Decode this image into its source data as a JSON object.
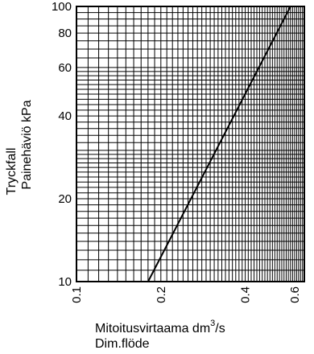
{
  "chart_data": {
    "type": "line",
    "xscale": "log",
    "yscale": "log",
    "xlim": [
      0.1,
      0.65
    ],
    "ylim": [
      10,
      100
    ],
    "grid": true,
    "xticks": [
      {
        "value": 0.1,
        "label": "0.1"
      },
      {
        "value": 0.2,
        "label": "0.2"
      },
      {
        "value": 0.4,
        "label": "0.4"
      },
      {
        "value": 0.6,
        "label": "0.6"
      }
    ],
    "yticks": [
      {
        "value": 10,
        "label": "10"
      },
      {
        "value": 20,
        "label": "20"
      },
      {
        "value": 40,
        "label": "40"
      },
      {
        "value": 60,
        "label": "60"
      },
      {
        "value": 80,
        "label": "80"
      },
      {
        "value": 100,
        "label": "100"
      }
    ],
    "ylabel_line1": "Tryckfall",
    "ylabel_line2": "Painehäviö  kPa",
    "xlabel_line1_main": "Mitoitusvirtaama  dm",
    "xlabel_line1_sup": "3",
    "xlabel_line1_tail": "/s",
    "xlabel_line2": "Dim.flöde",
    "series": [
      {
        "x": [
          0.18,
          0.58
        ],
        "y": [
          10,
          100
        ]
      }
    ],
    "line_color": "#000000"
  }
}
